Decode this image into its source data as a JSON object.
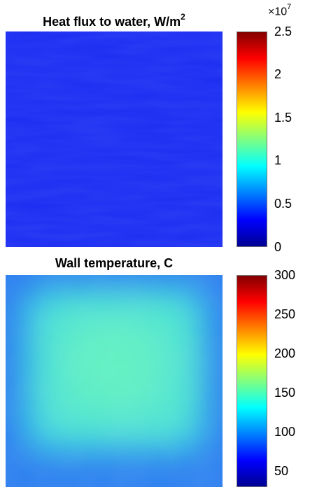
{
  "chart_data": [
    {
      "type": "heatmap",
      "title": "Heat flux to water, W/m",
      "title_superscript": "2",
      "colormap": "jet",
      "colorbar": {
        "multiplier_base": "×10",
        "multiplier_exponent": "7",
        "range": [
          0,
          2.5
        ],
        "ticks": [
          "2.5",
          "2",
          "1.5",
          "1",
          "0.5",
          "0"
        ],
        "tick_values": [
          2.5,
          2,
          1.5,
          1,
          0.5,
          0
        ]
      },
      "field_summary": "nearly uniform field",
      "value_range_shown": [
        0.15,
        0.25
      ],
      "typical_value": 0.2
    },
    {
      "type": "heatmap",
      "title": "Wall temperature, C",
      "colormap": "jet",
      "colorbar": {
        "range": [
          30,
          300
        ],
        "ticks": [
          "300",
          "250",
          "200",
          "150",
          "100",
          "50"
        ],
        "tick_values": [
          300,
          250,
          200,
          150,
          100,
          50
        ]
      },
      "field_summary": "warm central region fading to cooler edges",
      "center_value": 150,
      "edge_value": 90,
      "bottom_edge_value": 80
    }
  ]
}
